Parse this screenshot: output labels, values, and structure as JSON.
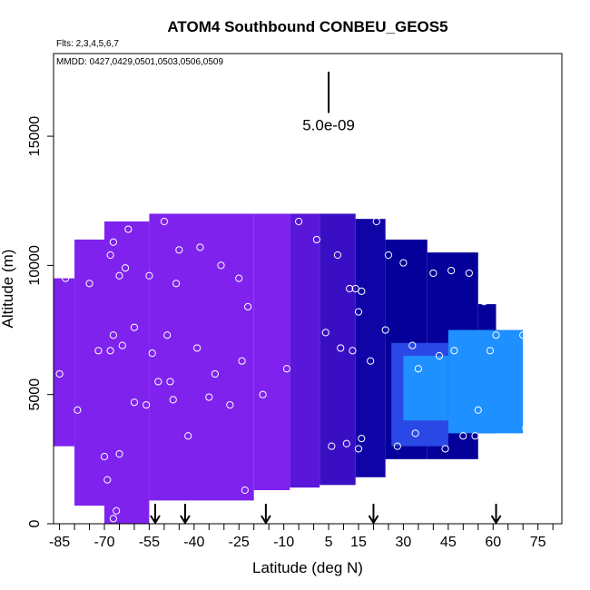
{
  "chart_data": {
    "type": "heatmap",
    "title": "ATOM4 Southbound CONBEU_GEOS5",
    "flights_note": "Flts: 2,3,4,5,6,7",
    "dates_note": "MMDD: 0427,0429,0501,0503,0506,0509",
    "xlabel": "Latitude (deg N)",
    "ylabel": "Altitude (m)",
    "xlim": [
      -87,
      83
    ],
    "ylim": [
      0,
      18200
    ],
    "x_ticks": [
      -85,
      -70,
      -55,
      -40,
      -25,
      -10,
      5,
      15,
      30,
      45,
      60,
      75
    ],
    "x_minor_ticks": [
      -85,
      -80,
      -75,
      -70,
      -65,
      -60,
      -55,
      -50,
      -45,
      -40,
      -35,
      -30,
      -25,
      -20,
      -15,
      -10,
      -5,
      0,
      5,
      10,
      15,
      20,
      25,
      30,
      35,
      40,
      45,
      50,
      55,
      60,
      65,
      70,
      75,
      80
    ],
    "y_ticks": [
      0,
      5000,
      10000,
      15000
    ],
    "scale_bar_label": "5.0e-09",
    "scale_bar_range": [
      15900,
      17500
    ],
    "scale_bar_x": 5,
    "colors": {
      "purple": "#7f22ee",
      "mid_purple": "#5a17d9",
      "indigo": "#3a0fc4",
      "dark_blue": "#0f04a6",
      "navy": "#05009a",
      "royal": "#2a48e6",
      "sky": "#1e90ff"
    },
    "grid": false,
    "field_regions": [
      {
        "lat": [
          -87,
          -80
        ],
        "alt": [
          3000,
          9500
        ],
        "color": "purple"
      },
      {
        "lat": [
          -80,
          -70
        ],
        "alt": [
          700,
          11000
        ],
        "color": "purple"
      },
      {
        "lat": [
          -70,
          -55
        ],
        "alt": [
          0,
          11700
        ],
        "color": "purple"
      },
      {
        "lat": [
          -55,
          -20
        ],
        "alt": [
          900,
          12000
        ],
        "color": "purple"
      },
      {
        "lat": [
          -20,
          -8
        ],
        "alt": [
          1300,
          12000
        ],
        "color": "purple"
      },
      {
        "lat": [
          -8,
          2
        ],
        "alt": [
          1400,
          12000
        ],
        "color": "mid_purple"
      },
      {
        "lat": [
          2,
          14
        ],
        "alt": [
          1500,
          12000
        ],
        "color": "indigo"
      },
      {
        "lat": [
          14,
          24
        ],
        "alt": [
          1800,
          11800
        ],
        "color": "dark_blue"
      },
      {
        "lat": [
          24,
          38
        ],
        "alt": [
          2500,
          11000
        ],
        "color": "navy"
      },
      {
        "lat": [
          38,
          55
        ],
        "alt": [
          2500,
          10500
        ],
        "color": "navy"
      },
      {
        "lat": [
          55,
          61
        ],
        "alt": [
          3500,
          8500
        ],
        "color": "navy"
      },
      {
        "lat": [
          26,
          45
        ],
        "alt": [
          3000,
          7000
        ],
        "color": "royal"
      },
      {
        "lat": [
          45,
          70
        ],
        "alt": [
          3500,
          7500
        ],
        "color": "sky"
      },
      {
        "lat": [
          30,
          45
        ],
        "alt": [
          4000,
          6500
        ],
        "color": "sky"
      }
    ],
    "sample_points": [
      {
        "lat": -85,
        "alt": 5800
      },
      {
        "lat": -83,
        "alt": 9500
      },
      {
        "lat": -79,
        "alt": 4400
      },
      {
        "lat": -75,
        "alt": 9300
      },
      {
        "lat": -72,
        "alt": 6700
      },
      {
        "lat": -70,
        "alt": 2600
      },
      {
        "lat": -69,
        "alt": 1700
      },
      {
        "lat": -68,
        "alt": 6700
      },
      {
        "lat": -67,
        "alt": 7300
      },
      {
        "lat": -68,
        "alt": 10400
      },
      {
        "lat": -67,
        "alt": 10900
      },
      {
        "lat": -65,
        "alt": 9600
      },
      {
        "lat": -64,
        "alt": 6900
      },
      {
        "lat": -63,
        "alt": 9900
      },
      {
        "lat": -62,
        "alt": 11400
      },
      {
        "lat": -60,
        "alt": 7600
      },
      {
        "lat": -60,
        "alt": 4700
      },
      {
        "lat": -56,
        "alt": 4600
      },
      {
        "lat": -55,
        "alt": 9600
      },
      {
        "lat": -54,
        "alt": 6600
      },
      {
        "lat": -50,
        "alt": 11700
      },
      {
        "lat": -52,
        "alt": 5500
      },
      {
        "lat": -49,
        "alt": 7300
      },
      {
        "lat": -48,
        "alt": 5500
      },
      {
        "lat": -47,
        "alt": 4800
      },
      {
        "lat": -46,
        "alt": 9300
      },
      {
        "lat": -45,
        "alt": 10600
      },
      {
        "lat": -42,
        "alt": 3400
      },
      {
        "lat": -39,
        "alt": 6800
      },
      {
        "lat": -38,
        "alt": 10700
      },
      {
        "lat": -35,
        "alt": 4900
      },
      {
        "lat": -33,
        "alt": 5800
      },
      {
        "lat": -31,
        "alt": 10000
      },
      {
        "lat": -28,
        "alt": 4600
      },
      {
        "lat": -25,
        "alt": 9500
      },
      {
        "lat": -24,
        "alt": 6300
      },
      {
        "lat": -22,
        "alt": 8400
      },
      {
        "lat": -23,
        "alt": 1300
      },
      {
        "lat": -17,
        "alt": 5000
      },
      {
        "lat": -9,
        "alt": 6000
      },
      {
        "lat": -5,
        "alt": 11700
      },
      {
        "lat": 1,
        "alt": 11000
      },
      {
        "lat": 4,
        "alt": 7400
      },
      {
        "lat": 6,
        "alt": 3000
      },
      {
        "lat": 8,
        "alt": 10400
      },
      {
        "lat": 9,
        "alt": 6800
      },
      {
        "lat": 11,
        "alt": 3100
      },
      {
        "lat": 12,
        "alt": 9100
      },
      {
        "lat": 13,
        "alt": 6700
      },
      {
        "lat": 14,
        "alt": 9100
      },
      {
        "lat": 15,
        "alt": 2900
      },
      {
        "lat": 15,
        "alt": 8200
      },
      {
        "lat": 16,
        "alt": 3300
      },
      {
        "lat": 16,
        "alt": 9000
      },
      {
        "lat": 19,
        "alt": 6300
      },
      {
        "lat": 21,
        "alt": 11700
      },
      {
        "lat": 24,
        "alt": 7500
      },
      {
        "lat": 25,
        "alt": 10400
      },
      {
        "lat": 28,
        "alt": 3000
      },
      {
        "lat": 30,
        "alt": 10100
      },
      {
        "lat": 33,
        "alt": 6900
      },
      {
        "lat": 34,
        "alt": 3500
      },
      {
        "lat": 35,
        "alt": 6000
      },
      {
        "lat": 40,
        "alt": 9700
      },
      {
        "lat": 42,
        "alt": 6500
      },
      {
        "lat": 44,
        "alt": 2900
      },
      {
        "lat": 46,
        "alt": 9800
      },
      {
        "lat": 47,
        "alt": 6700
      },
      {
        "lat": 50,
        "alt": 3400
      },
      {
        "lat": 52,
        "alt": 9700
      },
      {
        "lat": 54,
        "alt": 3400
      },
      {
        "lat": 55,
        "alt": 4400
      },
      {
        "lat": 57,
        "alt": 8600
      },
      {
        "lat": 59,
        "alt": 6700
      },
      {
        "lat": 61,
        "alt": 7300
      },
      {
        "lat": 70,
        "alt": 7300
      },
      {
        "lat": 71,
        "alt": 3700
      },
      {
        "lat": -67,
        "alt": 200
      },
      {
        "lat": -66,
        "alt": 500
      },
      {
        "lat": -65,
        "alt": 2700
      }
    ],
    "profile_arrows_lat": [
      -53,
      -43,
      -16,
      20,
      61
    ]
  }
}
